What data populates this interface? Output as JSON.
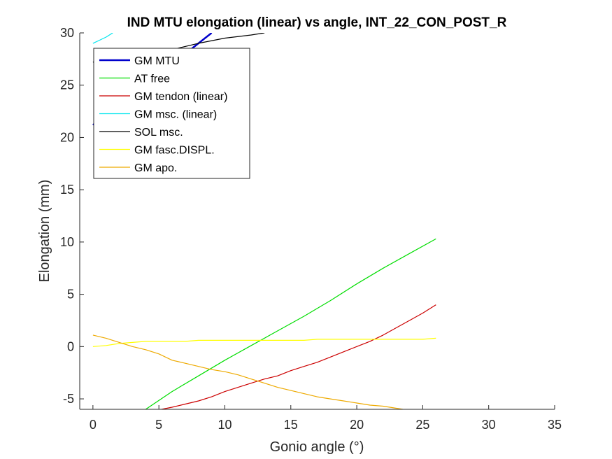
{
  "chart_data": {
    "type": "line",
    "title": "IND MTU elongation (linear) vs angle, INT_22_CON_POST_R",
    "xlabel": "Gonio angle (°)",
    "ylabel": "Elongation (mm)",
    "xlim": [
      -1,
      35
    ],
    "ylim": [
      -6,
      30
    ],
    "xticks": [
      0,
      5,
      10,
      15,
      20,
      25,
      30,
      35
    ],
    "yticks": [
      -5,
      0,
      5,
      10,
      15,
      20,
      25,
      30
    ],
    "legend_position": "top-left",
    "grid": false,
    "series": [
      {
        "name": "GM MTU",
        "color": "#0000cc",
        "width": 2.5,
        "x": [
          0,
          1,
          2,
          3,
          4,
          5,
          6,
          7,
          8,
          9
        ],
        "y": [
          21.2,
          22.2,
          23.2,
          24.2,
          25.2,
          26.0,
          27.0,
          28.0,
          29.0,
          30.0
        ]
      },
      {
        "name": "AT free",
        "color": "#00dd00",
        "width": 1.2,
        "x": [
          4,
          6,
          8,
          10,
          12,
          14,
          16,
          18,
          20,
          22,
          24,
          26
        ],
        "y": [
          -6.0,
          -4.3,
          -2.8,
          -1.3,
          0.1,
          1.5,
          2.9,
          4.4,
          6.0,
          7.5,
          8.9,
          10.3
        ]
      },
      {
        "name": "GM tendon (linear)",
        "color": "#cc0000",
        "width": 1.2,
        "x": [
          5.2,
          6,
          7,
          8,
          9,
          10,
          11,
          12,
          13,
          14,
          15,
          16,
          17,
          18,
          19,
          20,
          21,
          22,
          23,
          24,
          25,
          26
        ],
        "y": [
          -6.0,
          -5.8,
          -5.5,
          -5.2,
          -4.8,
          -4.3,
          -3.9,
          -3.5,
          -3.1,
          -2.8,
          -2.3,
          -1.9,
          -1.5,
          -1.0,
          -0.5,
          0.0,
          0.5,
          1.1,
          1.8,
          2.5,
          3.2,
          4.0
        ]
      },
      {
        "name": "GM msc. (linear)",
        "color": "#00e5ee",
        "width": 1.2,
        "x": [
          0,
          0.5,
          1,
          1.5
        ],
        "y": [
          29.0,
          29.3,
          29.6,
          30.0
        ]
      },
      {
        "name": "SOL msc.",
        "color": "#000000",
        "width": 1.2,
        "x": [
          0,
          2,
          4,
          6,
          8,
          10,
          12,
          13
        ],
        "y": [
          27.2,
          27.6,
          28.0,
          28.4,
          29.0,
          29.5,
          29.8,
          30.0
        ]
      },
      {
        "name": "GM fasc.DISPL.",
        "color": "#ffff00",
        "width": 1.2,
        "x": [
          0,
          1,
          2,
          3,
          4,
          5,
          6,
          7,
          8,
          9,
          10,
          11,
          12,
          13,
          14,
          15,
          16,
          17,
          18,
          19,
          20,
          21,
          22,
          23,
          24,
          25,
          26
        ],
        "y": [
          0.0,
          0.1,
          0.3,
          0.4,
          0.5,
          0.5,
          0.5,
          0.5,
          0.6,
          0.6,
          0.6,
          0.6,
          0.6,
          0.6,
          0.6,
          0.6,
          0.6,
          0.7,
          0.7,
          0.7,
          0.7,
          0.7,
          0.7,
          0.7,
          0.7,
          0.7,
          0.8
        ]
      },
      {
        "name": "GM apo.",
        "color": "#eeaa00",
        "width": 1.2,
        "x": [
          0,
          1,
          2,
          3,
          4,
          5,
          6,
          7,
          8,
          9,
          10,
          11,
          12,
          13,
          14,
          15,
          16,
          17,
          18,
          19,
          20,
          21,
          22,
          23,
          23.5
        ],
        "y": [
          1.1,
          0.8,
          0.4,
          0.0,
          -0.3,
          -0.7,
          -1.3,
          -1.6,
          -1.9,
          -2.2,
          -2.4,
          -2.7,
          -3.1,
          -3.5,
          -3.9,
          -4.2,
          -4.5,
          -4.8,
          -5.0,
          -5.2,
          -5.4,
          -5.6,
          -5.7,
          -5.9,
          -6.0
        ]
      }
    ]
  }
}
